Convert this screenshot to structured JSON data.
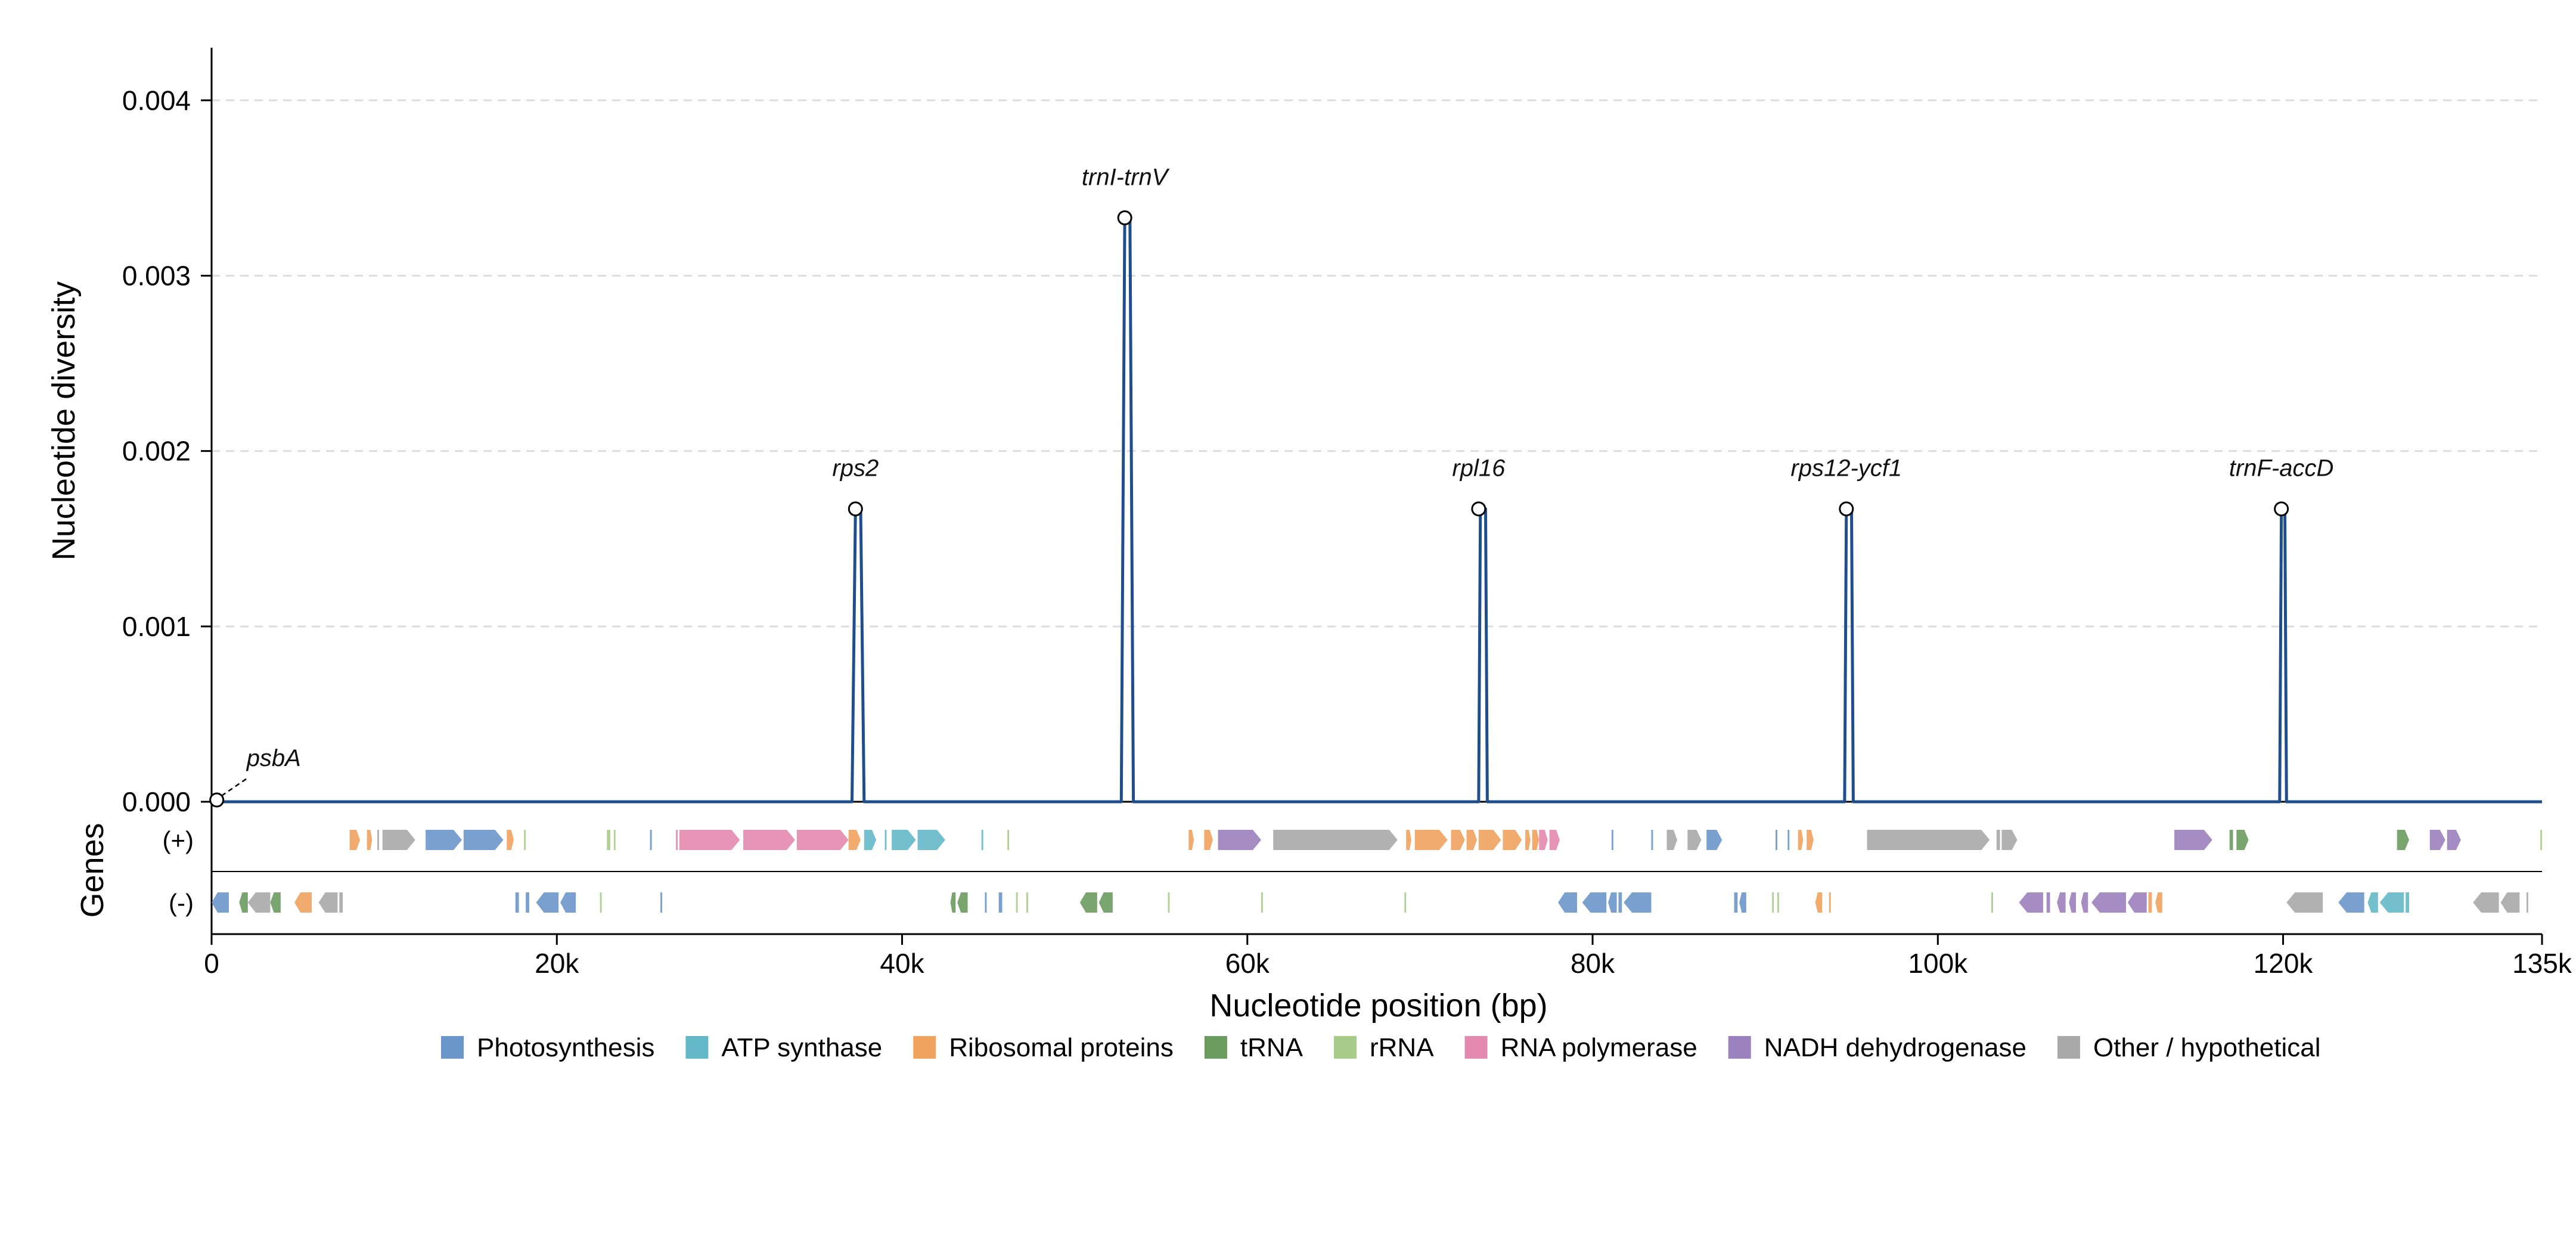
{
  "chart_data": {
    "type": "line",
    "title": "",
    "xlabel": "Nucleotide position (bp)",
    "ylabel": "Nucleotide diversity",
    "track_label": "Genes",
    "xlim": [
      0,
      135000
    ],
    "ylim": [
      0,
      0.0043
    ],
    "x_ticks": [
      0,
      20000,
      40000,
      60000,
      80000,
      100000,
      120000,
      135000
    ],
    "x_tick_labels": [
      "0",
      "20k",
      "40k",
      "60k",
      "80k",
      "100k",
      "120k",
      "135k"
    ],
    "y_ticks": [
      0.0,
      0.001,
      0.002,
      0.003,
      0.004
    ],
    "y_tick_labels": [
      "0.000",
      "0.001",
      "0.002",
      "0.003",
      "0.004"
    ],
    "grid": "horizontal dashed",
    "series": [
      {
        "color": "#1f4e8c",
        "points": [
          [
            0,
            0
          ],
          [
            37100,
            0
          ],
          [
            37300,
            0.00167
          ],
          [
            37600,
            0.00167
          ],
          [
            37800,
            0
          ],
          [
            52700,
            0
          ],
          [
            52900,
            0.00333
          ],
          [
            53200,
            0.00333
          ],
          [
            53400,
            0
          ],
          [
            73400,
            0
          ],
          [
            73500,
            0.00167
          ],
          [
            73800,
            0.00167
          ],
          [
            73900,
            0
          ],
          [
            94600,
            0
          ],
          [
            94700,
            0.00167
          ],
          [
            95000,
            0.00167
          ],
          [
            95100,
            0
          ],
          [
            119800,
            0
          ],
          [
            119900,
            0.00167
          ],
          [
            120100,
            0.00167
          ],
          [
            120200,
            0
          ],
          [
            135000,
            0
          ]
        ]
      }
    ],
    "peaks": [
      {
        "label": "psbA",
        "x": 300,
        "y": 0.0
      },
      {
        "label": "rps2",
        "x": 37300,
        "y": 0.00167
      },
      {
        "label": "trnI-trnV",
        "x": 52900,
        "y": 0.00333
      },
      {
        "label": "rpl16",
        "x": 73400,
        "y": 0.00167
      },
      {
        "label": "rps12-ycf1",
        "x": 94700,
        "y": 0.00167
      },
      {
        "label": "trnF-accD",
        "x": 119900,
        "y": 0.00167
      }
    ],
    "tracks": [
      {
        "label": "(+)",
        "genes": [
          {
            "s": 8000,
            "e": 8600,
            "c": "ribo"
          },
          {
            "s": 9000,
            "e": 9300,
            "c": "ribo"
          },
          {
            "s": 9600,
            "e": 9700,
            "c": "other"
          },
          {
            "s": 9900,
            "e": 11800,
            "c": "other"
          },
          {
            "s": 12400,
            "e": 14500,
            "c": "photo"
          },
          {
            "s": 14600,
            "e": 16900,
            "c": "photo"
          },
          {
            "s": 17100,
            "e": 17500,
            "c": "ribo"
          },
          {
            "s": 18100,
            "e": 18200,
            "c": "rrna"
          },
          {
            "s": 22900,
            "e": 23100,
            "c": "rrna"
          },
          {
            "s": 23300,
            "e": 23400,
            "c": "rrna"
          },
          {
            "s": 25400,
            "e": 25500,
            "c": "photo"
          },
          {
            "s": 26900,
            "e": 27000,
            "c": "rna_pol"
          },
          {
            "s": 27100,
            "e": 30600,
            "c": "rna_pol"
          },
          {
            "s": 30800,
            "e": 33800,
            "c": "rna_pol"
          },
          {
            "s": 33900,
            "e": 36900,
            "c": "rna_pol"
          },
          {
            "s": 36900,
            "e": 37600,
            "c": "ribo"
          },
          {
            "s": 37800,
            "e": 38500,
            "c": "atp"
          },
          {
            "s": 39000,
            "e": 39100,
            "c": "atp"
          },
          {
            "s": 39400,
            "e": 40800,
            "c": "atp"
          },
          {
            "s": 40900,
            "e": 42500,
            "c": "atp"
          },
          {
            "s": 44600,
            "e": 44700,
            "c": "atp"
          },
          {
            "s": 46100,
            "e": 46200,
            "c": "rrna"
          },
          {
            "s": 56600,
            "e": 56900,
            "c": "ribo"
          },
          {
            "s": 57500,
            "e": 58000,
            "c": "ribo"
          },
          {
            "s": 58300,
            "e": 60800,
            "c": "nadh"
          },
          {
            "s": 61500,
            "e": 68700,
            "c": "other"
          },
          {
            "s": 69200,
            "e": 69500,
            "c": "ribo"
          },
          {
            "s": 69700,
            "e": 71600,
            "c": "ribo"
          },
          {
            "s": 71800,
            "e": 72600,
            "c": "ribo"
          },
          {
            "s": 72700,
            "e": 73300,
            "c": "ribo"
          },
          {
            "s": 73400,
            "e": 74700,
            "c": "ribo"
          },
          {
            "s": 74800,
            "e": 75900,
            "c": "ribo"
          },
          {
            "s": 76100,
            "e": 76400,
            "c": "ribo"
          },
          {
            "s": 76500,
            "e": 76900,
            "c": "ribo"
          },
          {
            "s": 76900,
            "e": 77400,
            "c": "rna_pol"
          },
          {
            "s": 77500,
            "e": 78100,
            "c": "rna_pol"
          },
          {
            "s": 81100,
            "e": 81200,
            "c": "photo"
          },
          {
            "s": 83400,
            "e": 83500,
            "c": "photo"
          },
          {
            "s": 84300,
            "e": 84900,
            "c": "other"
          },
          {
            "s": 85500,
            "e": 86300,
            "c": "other"
          },
          {
            "s": 86600,
            "e": 87500,
            "c": "photo"
          },
          {
            "s": 90600,
            "e": 90700,
            "c": "photo"
          },
          {
            "s": 91300,
            "e": 91400,
            "c": "photo"
          },
          {
            "s": 91900,
            "e": 92200,
            "c": "ribo"
          },
          {
            "s": 92400,
            "e": 92800,
            "c": "ribo"
          },
          {
            "s": 95900,
            "e": 103000,
            "c": "other"
          },
          {
            "s": 103400,
            "e": 103600,
            "c": "other"
          },
          {
            "s": 103700,
            "e": 104600,
            "c": "other"
          },
          {
            "s": 113700,
            "e": 115900,
            "c": "nadh"
          },
          {
            "s": 116900,
            "e": 117100,
            "c": "trna"
          },
          {
            "s": 117300,
            "e": 118000,
            "c": "trna"
          },
          {
            "s": 126600,
            "e": 127300,
            "c": "trna"
          },
          {
            "s": 128500,
            "e": 129400,
            "c": "nadh"
          },
          {
            "s": 129500,
            "e": 130300,
            "c": "nadh"
          },
          {
            "s": 134900,
            "e": 135000,
            "c": "rrna"
          }
        ]
      },
      {
        "label": "(-)",
        "genes": [
          {
            "s": 0,
            "e": 1000,
            "c": "photo"
          },
          {
            "s": 1600,
            "e": 2100,
            "c": "trna"
          },
          {
            "s": 2100,
            "e": 3400,
            "c": "other"
          },
          {
            "s": 3400,
            "e": 4000,
            "c": "trna"
          },
          {
            "s": 4800,
            "e": 5800,
            "c": "ribo"
          },
          {
            "s": 6200,
            "e": 7300,
            "c": "other"
          },
          {
            "s": 7400,
            "e": 7600,
            "c": "other"
          },
          {
            "s": 17600,
            "e": 17800,
            "c": "photo"
          },
          {
            "s": 18200,
            "e": 18400,
            "c": "photo"
          },
          {
            "s": 18800,
            "e": 20100,
            "c": "photo"
          },
          {
            "s": 20200,
            "e": 21100,
            "c": "photo"
          },
          {
            "s": 22500,
            "e": 22600,
            "c": "rrna"
          },
          {
            "s": 26000,
            "e": 26100,
            "c": "photo"
          },
          {
            "s": 42800,
            "e": 43100,
            "c": "trna"
          },
          {
            "s": 43200,
            "e": 43800,
            "c": "trna"
          },
          {
            "s": 44800,
            "e": 44900,
            "c": "photo"
          },
          {
            "s": 45600,
            "e": 45800,
            "c": "photo"
          },
          {
            "s": 46600,
            "e": 46700,
            "c": "rrna"
          },
          {
            "s": 47200,
            "e": 47300,
            "c": "rrna"
          },
          {
            "s": 50300,
            "e": 51300,
            "c": "trna"
          },
          {
            "s": 51400,
            "e": 52200,
            "c": "trna"
          },
          {
            "s": 55400,
            "e": 55500,
            "c": "rrna"
          },
          {
            "s": 60800,
            "e": 60900,
            "c": "rrna"
          },
          {
            "s": 69100,
            "e": 69200,
            "c": "rrna"
          },
          {
            "s": 78000,
            "e": 79100,
            "c": "photo"
          },
          {
            "s": 79400,
            "e": 80800,
            "c": "photo"
          },
          {
            "s": 80900,
            "e": 81400,
            "c": "photo"
          },
          {
            "s": 81500,
            "e": 81700,
            "c": "photo"
          },
          {
            "s": 81800,
            "e": 83400,
            "c": "photo"
          },
          {
            "s": 88200,
            "e": 88400,
            "c": "photo"
          },
          {
            "s": 88500,
            "e": 88900,
            "c": "photo"
          },
          {
            "s": 90400,
            "e": 90500,
            "c": "rrna"
          },
          {
            "s": 90700,
            "e": 90800,
            "c": "rrna"
          },
          {
            "s": 92900,
            "e": 93300,
            "c": "ribo"
          },
          {
            "s": 93700,
            "e": 93800,
            "c": "ribo"
          },
          {
            "s": 103100,
            "e": 103200,
            "c": "rrna"
          },
          {
            "s": 104700,
            "e": 106100,
            "c": "nadh"
          },
          {
            "s": 106300,
            "e": 106500,
            "c": "nadh"
          },
          {
            "s": 106900,
            "e": 107400,
            "c": "nadh"
          },
          {
            "s": 107600,
            "e": 108000,
            "c": "nadh"
          },
          {
            "s": 108300,
            "e": 108700,
            "c": "nadh"
          },
          {
            "s": 108900,
            "e": 110900,
            "c": "nadh"
          },
          {
            "s": 111000,
            "e": 112100,
            "c": "nadh"
          },
          {
            "s": 112200,
            "e": 112400,
            "c": "ribo"
          },
          {
            "s": 112600,
            "e": 113000,
            "c": "ribo"
          },
          {
            "s": 120200,
            "e": 122300,
            "c": "other"
          },
          {
            "s": 123200,
            "e": 124700,
            "c": "photo"
          },
          {
            "s": 124900,
            "e": 125500,
            "c": "atp"
          },
          {
            "s": 125600,
            "e": 127000,
            "c": "atp"
          },
          {
            "s": 127100,
            "e": 127300,
            "c": "atp"
          },
          {
            "s": 131000,
            "e": 132500,
            "c": "other"
          },
          {
            "s": 132600,
            "e": 133700,
            "c": "other"
          },
          {
            "s": 134100,
            "e": 134200,
            "c": "other"
          }
        ]
      }
    ],
    "legend": [
      {
        "key": "photo",
        "name": "Photosynthesis",
        "color": "#6a96c9"
      },
      {
        "key": "atp",
        "name": "ATP synthase",
        "color": "#65b8c8"
      },
      {
        "key": "ribo",
        "name": "Ribosomal proteins",
        "color": "#f0a25f"
      },
      {
        "key": "trna",
        "name": "tRNA",
        "color": "#6b9b5e"
      },
      {
        "key": "rrna",
        "name": "rRNA",
        "color": "#a9cb8a"
      },
      {
        "key": "rna_pol",
        "name": "RNA polymerase",
        "color": "#e38aae"
      },
      {
        "key": "nadh",
        "name": "NADH dehydrogenase",
        "color": "#9b81bd"
      },
      {
        "key": "other",
        "name": "Other / hypothetical",
        "color": "#a9a9a9"
      }
    ],
    "legend_position": "bottom"
  }
}
